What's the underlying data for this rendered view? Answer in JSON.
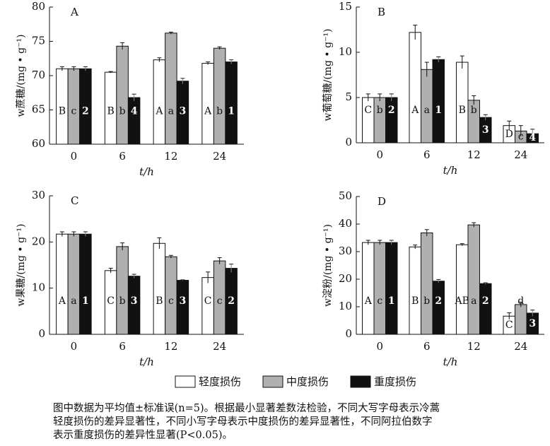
{
  "chart_data": [
    {
      "type": "bar",
      "panel": "A",
      "ylabel": "w蔗糖/(mg • g⁻¹)",
      "xlabel": "t/h",
      "categories": [
        "0",
        "6",
        "12",
        "24"
      ],
      "ylim": [
        60,
        80
      ],
      "yticks": [
        60,
        65,
        70,
        75,
        80
      ],
      "series": [
        {
          "name": "轻度损伤",
          "color": "#ffffff",
          "values": [
            71.0,
            70.5,
            72.3,
            71.8
          ],
          "errors": [
            0.3,
            0.1,
            0.3,
            0.2
          ],
          "letters": [
            "B",
            "B",
            "A",
            "A"
          ]
        },
        {
          "name": "中度损伤",
          "color": "#b0b0b0",
          "values": [
            71.0,
            74.3,
            76.2,
            74.0
          ],
          "errors": [
            0.3,
            0.5,
            0.15,
            0.2
          ],
          "letters": [
            "c",
            "b",
            "a",
            "b"
          ]
        },
        {
          "name": "重度损伤",
          "color": "#111111",
          "values": [
            71.0,
            66.8,
            69.2,
            72.0
          ],
          "errors": [
            0.3,
            0.5,
            0.4,
            0.3
          ],
          "letters": [
            "2",
            "4",
            "3",
            "1"
          ]
        }
      ]
    },
    {
      "type": "bar",
      "panel": "B",
      "ylabel": "w葡萄糖/(mg • g⁻¹)",
      "xlabel": "t/h",
      "categories": [
        "0",
        "6",
        "12",
        "24"
      ],
      "ylim": [
        0,
        15
      ],
      "yticks": [
        0,
        5,
        10,
        15
      ],
      "series": [
        {
          "name": "轻度损伤",
          "color": "#ffffff",
          "values": [
            5.0,
            12.2,
            8.9,
            1.9
          ],
          "errors": [
            0.4,
            0.8,
            0.7,
            0.5
          ],
          "letters": [
            "C",
            "A",
            "B",
            "D"
          ]
        },
        {
          "name": "中度损伤",
          "color": "#b0b0b0",
          "values": [
            5.0,
            8.1,
            4.7,
            1.3
          ],
          "errors": [
            0.4,
            0.8,
            0.5,
            0.6
          ],
          "letters": [
            "b",
            "a",
            "b",
            "c"
          ]
        },
        {
          "name": "重度损伤",
          "color": "#111111",
          "values": [
            5.0,
            9.2,
            2.8,
            1.0
          ],
          "errors": [
            0.4,
            0.3,
            0.3,
            0.5
          ],
          "letters": [
            "2",
            "1",
            "3",
            "4"
          ]
        }
      ]
    },
    {
      "type": "bar",
      "panel": "C",
      "ylabel": "w果糖/(mg • g⁻¹)",
      "xlabel": "t/h",
      "categories": [
        "0",
        "6",
        "12",
        "24"
      ],
      "ylim": [
        0,
        30
      ],
      "yticks": [
        0,
        10,
        20,
        30
      ],
      "series": [
        {
          "name": "轻度损伤",
          "color": "#ffffff",
          "values": [
            21.7,
            13.8,
            19.7,
            12.3
          ],
          "errors": [
            0.5,
            0.5,
            1.2,
            1.2
          ],
          "letters": [
            "A",
            "C",
            "B",
            "C"
          ]
        },
        {
          "name": "中度损伤",
          "color": "#b0b0b0",
          "values": [
            21.7,
            19.0,
            16.8,
            15.9
          ],
          "errors": [
            0.5,
            0.8,
            0.3,
            0.7
          ],
          "letters": [
            "a",
            "b",
            "c",
            "c"
          ]
        },
        {
          "name": "重度损伤",
          "color": "#111111",
          "values": [
            21.7,
            12.6,
            11.7,
            14.3
          ],
          "errors": [
            0.5,
            0.4,
            0.1,
            0.9
          ],
          "letters": [
            "1",
            "3",
            "3",
            "2"
          ]
        }
      ]
    },
    {
      "type": "bar",
      "panel": "D",
      "ylabel": "w淀粉/(mg • g⁻¹)",
      "xlabel": "t/h",
      "categories": [
        "0",
        "6",
        "12",
        "24"
      ],
      "ylim": [
        0,
        50
      ],
      "yticks": [
        0,
        10,
        20,
        30,
        40,
        50
      ],
      "series": [
        {
          "name": "轻度损伤",
          "color": "#ffffff",
          "values": [
            33.3,
            31.7,
            32.5,
            6.6
          ],
          "errors": [
            0.8,
            0.7,
            0.4,
            1.2
          ],
          "letters": [
            "A",
            "B",
            "AB",
            "C"
          ]
        },
        {
          "name": "中度损伤",
          "color": "#b0b0b0",
          "values": [
            33.3,
            36.8,
            39.7,
            10.8
          ],
          "errors": [
            0.8,
            1.2,
            0.8,
            0.9
          ],
          "letters": [
            "c",
            "b",
            "a",
            "d"
          ]
        },
        {
          "name": "重度损伤",
          "color": "#111111",
          "values": [
            33.3,
            19.3,
            18.4,
            7.7
          ],
          "errors": [
            0.8,
            0.6,
            0.3,
            1.1
          ],
          "letters": [
            "1",
            "2",
            "2",
            "3"
          ]
        }
      ]
    }
  ],
  "caption": [
    "图中数据为平均值±标准误(n=5)。根据最小显著差数法检验，不同大写字母表示冷蒿",
    "轻度损伤的差异显著性，不同小写字母表示中度损伤的差异显著性，不同阿拉伯数字",
    "表示重度损伤的差异性显著(P<0.05)。"
  ]
}
